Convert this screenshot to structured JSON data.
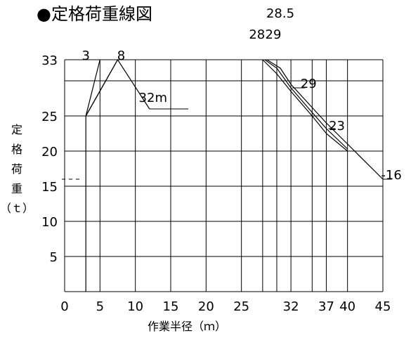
{
  "title": "●定格荷重線図",
  "chart_data": {
    "type": "line",
    "title": "定格荷重線図",
    "xlabel": "作業半径（ｍ）",
    "ylabel_chars": [
      "定",
      "格",
      "荷",
      "重",
      "（ｔ）"
    ],
    "xlim": [
      0,
      45
    ],
    "ylim": [
      0,
      33
    ],
    "x_ticks": [
      {
        "value": 0,
        "label": "0"
      },
      {
        "value": 5,
        "label": "5"
      },
      {
        "value": 10,
        "label": "10"
      },
      {
        "value": 15,
        "label": "15"
      },
      {
        "value": 20,
        "label": "20"
      },
      {
        "value": 25,
        "label": "25"
      },
      {
        "value": 32,
        "label": "32"
      },
      {
        "value": 37,
        "label": "37"
      },
      {
        "value": 40,
        "label": "40"
      },
      {
        "value": 45,
        "label": "45"
      }
    ],
    "y_ticks": [
      {
        "value": 5,
        "label": "5"
      },
      {
        "value": 10,
        "label": "10"
      },
      {
        "value": 15,
        "label": "15"
      },
      {
        "value": 20,
        "label": "20"
      },
      {
        "value": 25,
        "label": "25"
      },
      {
        "value": 33,
        "label": "33"
      }
    ],
    "x_gridlines": [
      0,
      5,
      10,
      15,
      20,
      25,
      28,
      30,
      32,
      35,
      37,
      40,
      45
    ],
    "y_gridlines": [
      0,
      5,
      10,
      15,
      20,
      25,
      30,
      33
    ],
    "reference_y": 16,
    "series": [
      {
        "label": "3",
        "x": [
          3,
          3,
          5
        ],
        "y": [
          0,
          25,
          33
        ]
      },
      {
        "label": "8",
        "x": [
          3,
          7.5
        ],
        "y": [
          25,
          33
        ]
      },
      {
        "label": "32m",
        "x": [
          3,
          7.5,
          12
        ],
        "y": [
          25,
          33,
          26
        ]
      },
      {
        "label": "28",
        "x": [
          28,
          30,
          32,
          35,
          37,
          40
        ],
        "y": [
          33,
          31,
          28.5,
          25,
          22.5,
          20
        ]
      },
      {
        "label": "29",
        "x": [
          28.3,
          30,
          32,
          35,
          37,
          40
        ],
        "y": [
          33,
          31.8,
          29,
          25.5,
          23.2,
          20.3
        ]
      },
      {
        "label": "23",
        "x": [
          28.6,
          30.5,
          32,
          35,
          37,
          40,
          45
        ],
        "y": [
          33,
          31.8,
          29.5,
          26.2,
          24,
          21,
          16
        ]
      }
    ],
    "annotations": [
      {
        "text": "3",
        "x": 3,
        "y": 33
      },
      {
        "text": "8",
        "x": 8,
        "y": 33
      },
      {
        "text": "32m",
        "x": 12.5,
        "y": 27
      },
      {
        "text": "28",
        "x": 27.2,
        "y": 36
      },
      {
        "text": "29",
        "x": 29.5,
        "y": 36
      },
      {
        "text": "28.5",
        "x": 30.5,
        "y": 39
      },
      {
        "text": "29",
        "x": 34.5,
        "y": 29
      },
      {
        "text": "23",
        "x": 38.5,
        "y": 23
      },
      {
        "text": "-16",
        "x": 46.2,
        "y": 16
      }
    ]
  }
}
